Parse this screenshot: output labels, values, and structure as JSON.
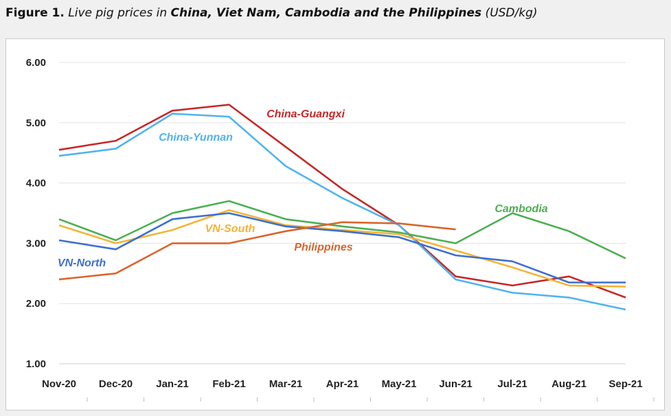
{
  "caption": {
    "prefix": "Figure 1.",
    "text1": " Live pig prices in ",
    "countries": "China, Viet Nam, Cambodia and the Philippines",
    "unit": " (USD/kg)"
  },
  "chart_data": {
    "type": "line",
    "categories": [
      "Nov-20",
      "Dec-20",
      "Jan-21",
      "Feb-21",
      "Mar-21",
      "Apr-21",
      "May-21",
      "Jun-21",
      "Jul-21",
      "Aug-21",
      "Sep-21"
    ],
    "y_ticks": [
      "1.00",
      "2.00",
      "3.00",
      "4.00",
      "5.00",
      "6.00"
    ],
    "ylim": [
      1,
      6
    ],
    "grid": true,
    "series": [
      {
        "name": "China-Guangxi",
        "color": "#c62828",
        "values": [
          4.55,
          4.7,
          5.2,
          5.3,
          4.6,
          3.9,
          3.3,
          2.45,
          2.3,
          2.45,
          2.1
        ]
      },
      {
        "name": "China-Yunnan",
        "color": "#4fb3f0",
        "values": [
          4.45,
          4.57,
          5.15,
          5.1,
          4.28,
          3.75,
          3.3,
          2.4,
          2.18,
          2.1,
          1.9
        ]
      },
      {
        "name": "Cambodia",
        "color": "#4caf50",
        "values": [
          3.4,
          3.05,
          3.5,
          3.7,
          3.4,
          3.28,
          3.18,
          3.0,
          3.5,
          3.2,
          2.75
        ]
      },
      {
        "name": "VN-South",
        "color": "#f5b335",
        "values": [
          3.3,
          3.0,
          3.22,
          3.55,
          3.3,
          3.22,
          3.15,
          2.88,
          2.6,
          2.3,
          2.28
        ]
      },
      {
        "name": "VN-North",
        "color": "#3c6fd1",
        "values": [
          3.05,
          2.9,
          3.4,
          3.5,
          3.28,
          3.2,
          3.1,
          2.8,
          2.7,
          2.35,
          2.35
        ]
      },
      {
        "name": "Philippines",
        "color": "#d9652b",
        "values": [
          2.4,
          2.5,
          3.0,
          3.0,
          3.2,
          3.35,
          3.33,
          3.23,
          null,
          null,
          null
        ]
      }
    ]
  }
}
